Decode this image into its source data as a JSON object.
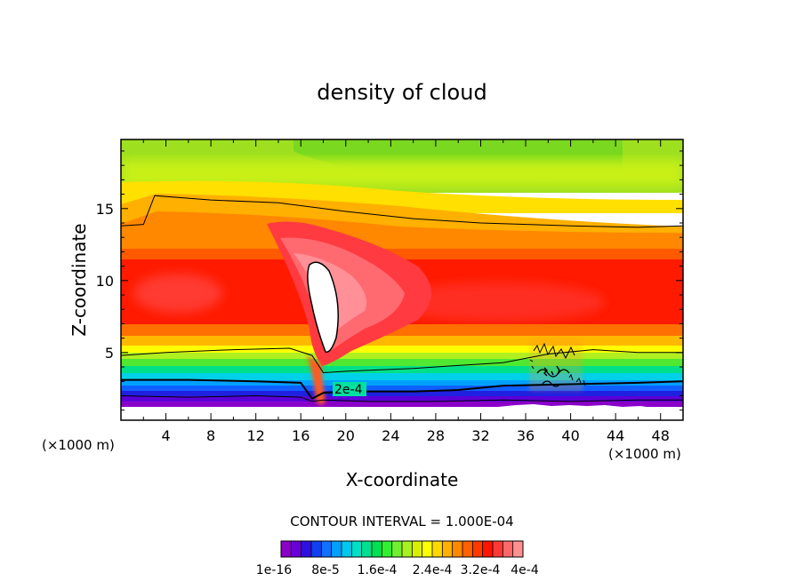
{
  "chart_data": {
    "type": "heatmap",
    "title": "density of cloud",
    "xlabel": "X-coordinate",
    "ylabel": "Z-coordinate",
    "x_unit_label": "(×1000 m)",
    "x_unit_label_left": "(×1000 m)",
    "xlim": [
      0,
      50
    ],
    "ylim": [
      0.3,
      19.8
    ],
    "x_ticks": [
      4,
      8,
      12,
      16,
      20,
      24,
      28,
      32,
      36,
      40,
      44,
      48
    ],
    "y_ticks": [
      5,
      10,
      15
    ],
    "contour_interval_text": "CONTOUR INTERVAL = 1.000E-04",
    "contour_label": "2e-4",
    "colorbar": {
      "tick_labels": [
        "1e-16",
        "8e-5",
        "1.6e-4",
        "2.4e-4",
        "3.2e-4",
        "4e-4"
      ],
      "colors": [
        "#8a00c8",
        "#6a00d8",
        "#3010e0",
        "#1040f0",
        "#1070ff",
        "#00a0ff",
        "#00c8f0",
        "#00e0c8",
        "#00e090",
        "#00e050",
        "#30f030",
        "#70f030",
        "#a8f020",
        "#d8f000",
        "#ffff00",
        "#ffd800",
        "#ffb000",
        "#ff8800",
        "#ff6000",
        "#ff3800",
        "#ff1400",
        "#ff3838",
        "#ff6868",
        "#ff9090"
      ]
    },
    "contour_lines": [
      {
        "level": "lower",
        "points": [
          [
            0,
            2.0
          ],
          [
            6,
            1.9
          ],
          [
            12,
            2.0
          ],
          [
            16,
            1.9
          ],
          [
            17,
            1.6
          ],
          [
            18,
            1.7
          ],
          [
            22,
            1.6
          ],
          [
            28,
            1.6
          ],
          [
            34,
            1.7
          ],
          [
            40,
            1.6
          ],
          [
            46,
            1.7
          ],
          [
            50,
            1.7
          ]
        ]
      },
      {
        "level": "2e-4",
        "points": [
          [
            0,
            3.1
          ],
          [
            6,
            3.1
          ],
          [
            12,
            3.0
          ],
          [
            16,
            2.9
          ],
          [
            17,
            1.8
          ],
          [
            18,
            2.2
          ],
          [
            20,
            2.3
          ],
          [
            26,
            2.3
          ],
          [
            30,
            2.4
          ],
          [
            34,
            2.7
          ],
          [
            40,
            2.8
          ],
          [
            46,
            2.9
          ],
          [
            50,
            3.0
          ]
        ]
      },
      {
        "level": "mid",
        "points": [
          [
            0,
            4.8
          ],
          [
            4,
            5.0
          ],
          [
            10,
            5.2
          ],
          [
            15,
            5.3
          ],
          [
            17,
            4.8
          ],
          [
            18,
            3.6
          ],
          [
            20,
            3.7
          ],
          [
            26,
            3.9
          ],
          [
            30,
            4.1
          ],
          [
            34,
            4.3
          ],
          [
            38,
            4.9
          ],
          [
            42,
            5.2
          ],
          [
            46,
            5.0
          ],
          [
            50,
            5.0
          ]
        ]
      },
      {
        "level": "upper",
        "points": [
          [
            0,
            13.8
          ],
          [
            2,
            13.9
          ],
          [
            3,
            15.9
          ],
          [
            8,
            15.6
          ],
          [
            14,
            15.4
          ],
          [
            20,
            14.8
          ],
          [
            26,
            14.3
          ],
          [
            32,
            14.0
          ],
          [
            40,
            13.8
          ],
          [
            46,
            13.7
          ],
          [
            50,
            13.8
          ]
        ]
      }
    ],
    "white_core_center": [
      18.0,
      7.5
    ]
  }
}
